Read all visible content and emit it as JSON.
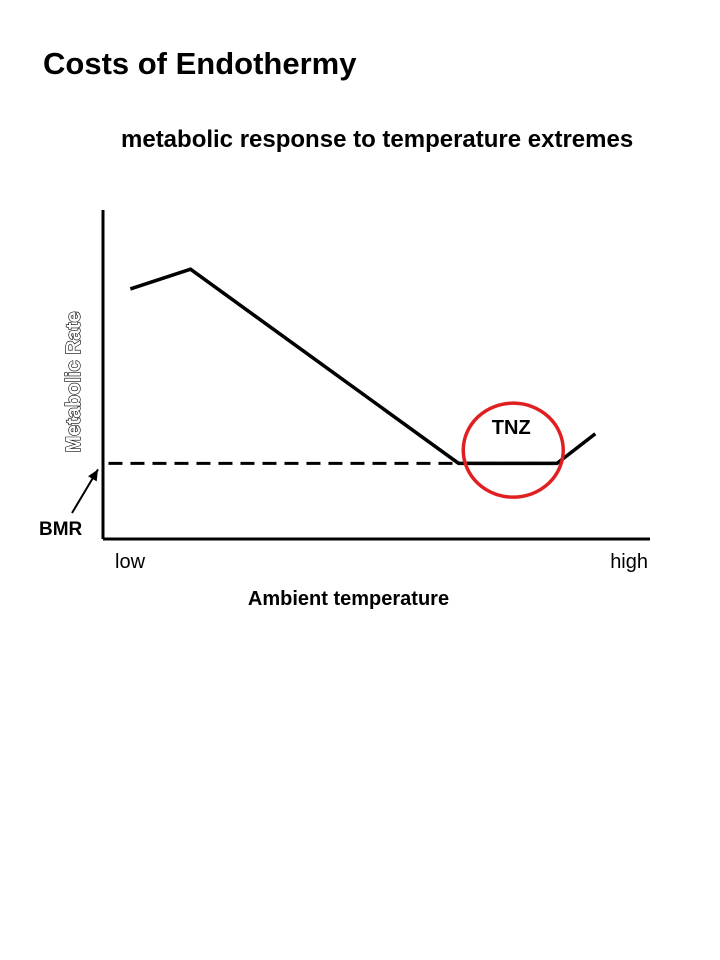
{
  "header": {
    "title": "Costs of Endothermy",
    "subtitle": "metabolic response to temperature extremes"
  },
  "chart_data": {
    "type": "line",
    "title": "",
    "xlabel": "Ambient  temperature",
    "ylabel": "Metabolic Rate",
    "x_tick_labels": [
      "low",
      "high"
    ],
    "xlim": [
      0,
      100
    ],
    "ylim": [
      0,
      100
    ],
    "grid": false,
    "series": [
      {
        "name": "",
        "x": [
          5,
          16,
          65,
          83,
          90
        ],
        "y": [
          76,
          82,
          23,
          23,
          32
        ]
      }
    ],
    "reference_line": {
      "label": "BMR",
      "y": 23,
      "style": "dashed",
      "x_start": 1,
      "x_end": 83
    },
    "annotations": [
      {
        "label": "TNZ",
        "shape": "ellipse",
        "x_center": 75,
        "y_center": 27,
        "color": "#e02020"
      }
    ]
  }
}
